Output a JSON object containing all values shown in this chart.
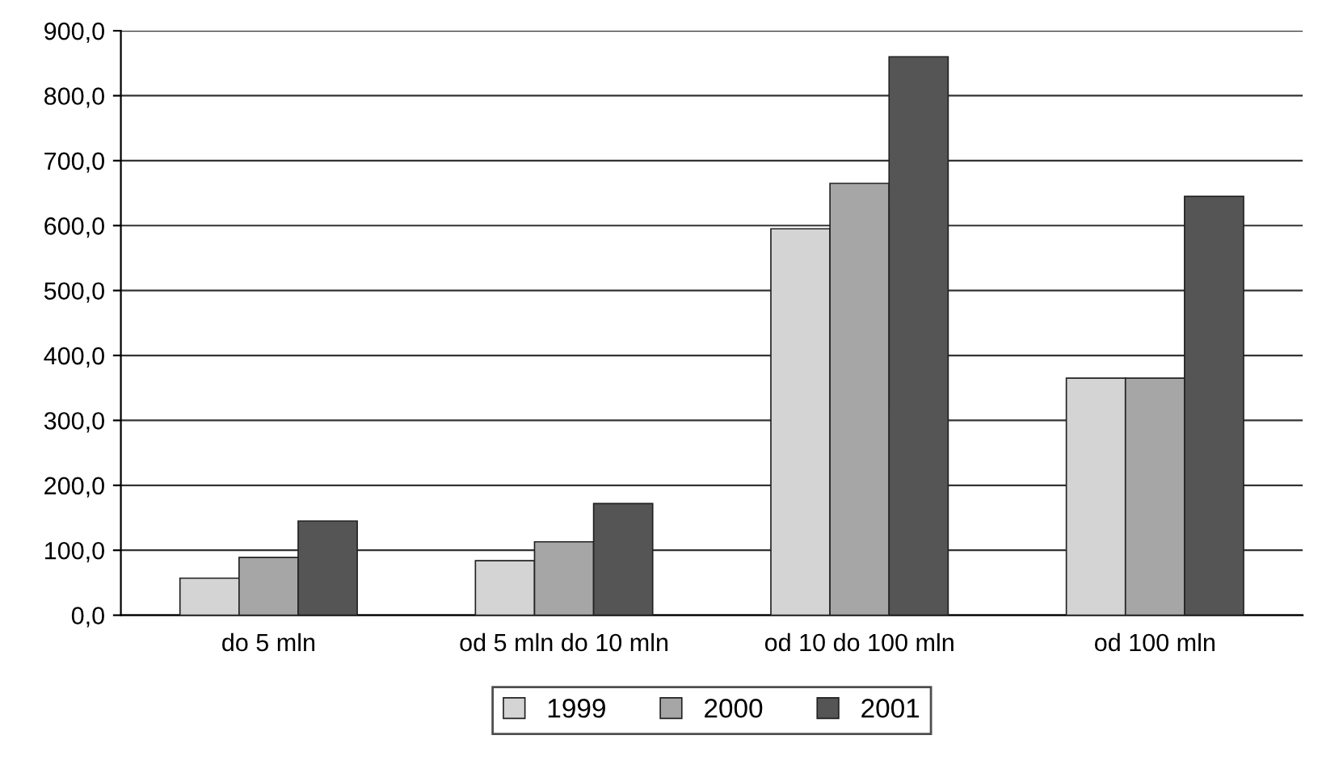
{
  "chart_data": {
    "type": "bar",
    "categories": [
      "do 5 mln",
      "od 5 mln do 10 mln",
      "od 10 do 100 mln",
      "od 100 mln"
    ],
    "series": [
      {
        "name": "1999",
        "color": "#d4d4d4",
        "values": [
          57,
          84,
          595,
          365
        ]
      },
      {
        "name": "2000",
        "color": "#a6a6a6",
        "values": [
          89,
          113,
          665,
          365
        ]
      },
      {
        "name": "2001",
        "color": "#555555",
        "values": [
          145,
          172,
          860,
          645
        ]
      }
    ],
    "ylim": [
      0,
      900
    ],
    "yticks": [
      {
        "value": 0,
        "label": "0,0"
      },
      {
        "value": 100,
        "label": "100,0"
      },
      {
        "value": 200,
        "label": "200,0"
      },
      {
        "value": 300,
        "label": "300,0"
      },
      {
        "value": 400,
        "label": "400,0"
      },
      {
        "value": 500,
        "label": "500,0"
      },
      {
        "value": 600,
        "label": "600,0"
      },
      {
        "value": 700,
        "label": "700,0"
      },
      {
        "value": 800,
        "label": "800,0"
      },
      {
        "value": 900,
        "label": "900,0"
      }
    ],
    "grid": "y",
    "legend": "bottom"
  }
}
